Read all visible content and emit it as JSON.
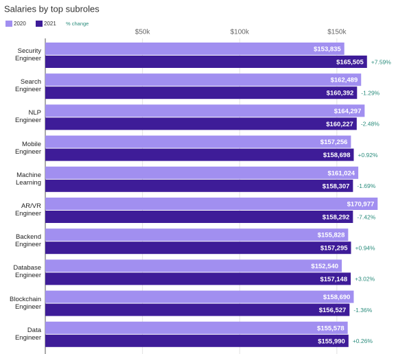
{
  "chart_data": {
    "type": "bar",
    "orientation": "horizontal",
    "title": "Salaries by top subroles",
    "categories": [
      "Security\nEngineer",
      "Search\nEngineer",
      "NLP\nEngineer",
      "Mobile\nEngineer",
      "Machine\nLearning",
      "AR/VR\nEngineer",
      "Backend\nEngineer",
      "Database\nEngineer",
      "Blockchain\nEngineer",
      "Data\nEngineer"
    ],
    "series": [
      {
        "name": "2020",
        "color": "#a18ff0",
        "values": [
          153835,
          162489,
          164297,
          157256,
          161024,
          170977,
          155828,
          152540,
          158690,
          155578
        ],
        "value_labels": [
          "$153,835",
          "$162,489",
          "$164,297",
          "$157,256",
          "$161,024",
          "$170,977",
          "$155,828",
          "$152,540",
          "$158,690",
          "$155,578"
        ]
      },
      {
        "name": "2021",
        "color": "#3e1c98",
        "values": [
          165505,
          160392,
          160227,
          158698,
          158307,
          158292,
          157295,
          157148,
          156527,
          155990
        ],
        "value_labels": [
          "$165,505",
          "$160,392",
          "$160,227",
          "$158,698",
          "$158,307",
          "$158,292",
          "$157,295",
          "$157,148",
          "$156,527",
          "$155,990"
        ]
      }
    ],
    "change_legend": "% change",
    "change_color": "#2a8c7c",
    "change_labels": [
      "+7.59%",
      "-1.29%",
      "-2.48%",
      "+0.92%",
      "-1.69%",
      "-7.42%",
      "+0.94%",
      "+3.02%",
      "-1.36%",
      "+0.26%"
    ],
    "xlim": [
      0,
      185000
    ],
    "xticks": [
      {
        "value": 50000,
        "label": "$50k"
      },
      {
        "value": 100000,
        "label": "$100k"
      },
      {
        "value": 150000,
        "label": "$150k"
      }
    ],
    "grid": true
  }
}
